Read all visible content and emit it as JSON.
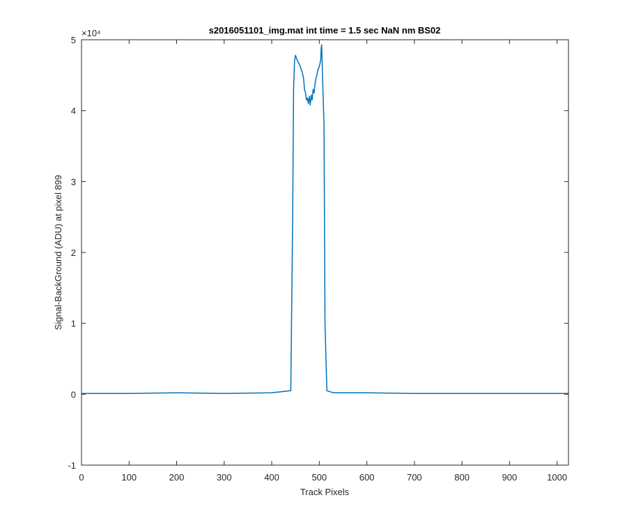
{
  "chart_data": {
    "type": "line",
    "title": "s2016051101_img.mat int time = 1.5 sec  NaN nm BS02",
    "xlabel": "Track Pixels",
    "ylabel": "Signal-BackGround (ADU) at pixel 899",
    "y_multiplier_label": "×10⁴",
    "xlim": [
      0,
      1024
    ],
    "ylim": [
      -1,
      5
    ],
    "y_scale_factor": 10000,
    "xticks": [
      0,
      100,
      200,
      300,
      400,
      500,
      600,
      700,
      800,
      900,
      1000
    ],
    "yticks": [
      -1,
      0,
      1,
      2,
      3,
      4,
      5
    ],
    "grid": false,
    "line_color": "#0072bd",
    "series": [
      {
        "x": [
          0,
          100,
          200,
          300,
          400,
          440,
          444,
          446,
          448,
          450,
          453,
          456,
          459,
          462,
          465,
          467,
          469,
          471,
          473,
          475,
          477,
          479,
          481,
          483,
          485,
          487,
          489,
          491,
          493,
          495,
          497,
          499,
          501,
          503,
          504,
          505,
          506,
          508,
          510,
          512,
          516,
          530,
          600,
          700,
          800,
          900,
          1024
        ],
        "y": [
          0.01,
          0.01,
          0.02,
          0.01,
          0.02,
          0.05,
          2.5,
          4.3,
          4.7,
          4.78,
          4.72,
          4.68,
          4.64,
          4.58,
          4.52,
          4.45,
          4.3,
          4.25,
          4.15,
          4.18,
          4.1,
          4.2,
          4.08,
          4.22,
          4.15,
          4.3,
          4.25,
          4.38,
          4.45,
          4.5,
          4.58,
          4.6,
          4.65,
          4.72,
          4.88,
          4.93,
          4.7,
          4.2,
          3.8,
          1.0,
          0.05,
          0.02,
          0.02,
          0.01,
          0.01,
          0.01,
          0.01
        ]
      }
    ]
  }
}
